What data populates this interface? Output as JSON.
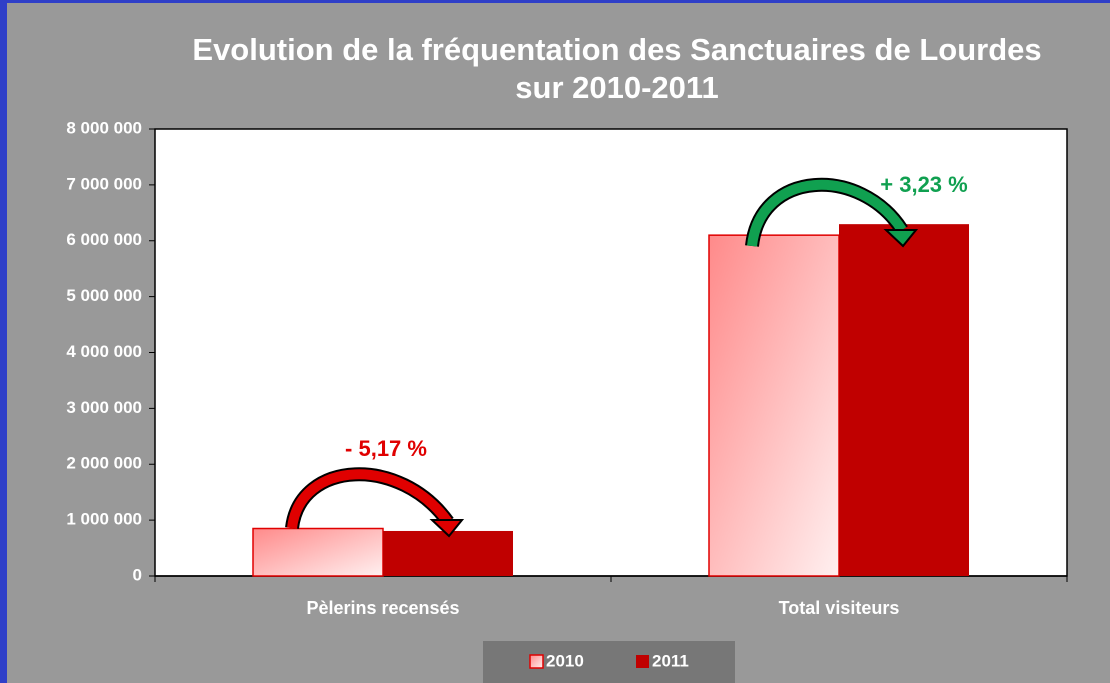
{
  "chart_data": {
    "type": "bar",
    "title": "Evolution de la fréquentation des Sanctuaires de Lourdes sur 2010-2011",
    "categories": [
      "Pèlerins recensés",
      "Total visiteurs"
    ],
    "series": [
      {
        "name": "2010",
        "color": "#ff8a8a",
        "values": [
          850000,
          6100000
        ]
      },
      {
        "name": "2011",
        "color": "#c00000",
        "values": [
          806000,
          6297000
        ]
      }
    ],
    "annotations": [
      "- 5,17 %",
      "+ 3,23 %"
    ],
    "ylim": [
      0,
      8000000
    ],
    "yticks": [
      0,
      {
        "value": 1000000,
        "label": "1 000 000"
      },
      {
        "value": 2000000,
        "label": "2 000 000"
      },
      {
        "value": 3000000,
        "label": "3 000 000"
      },
      {
        "value": 4000000,
        "label": "4 000 000"
      },
      {
        "value": 5000000,
        "label": "5 000 000"
      },
      {
        "value": 6000000,
        "label": "6 000 000"
      },
      {
        "value": 7000000,
        "label": "7 000 000"
      },
      {
        "value": 8000000,
        "label": "8 000 000"
      }
    ],
    "grid": false
  }
}
